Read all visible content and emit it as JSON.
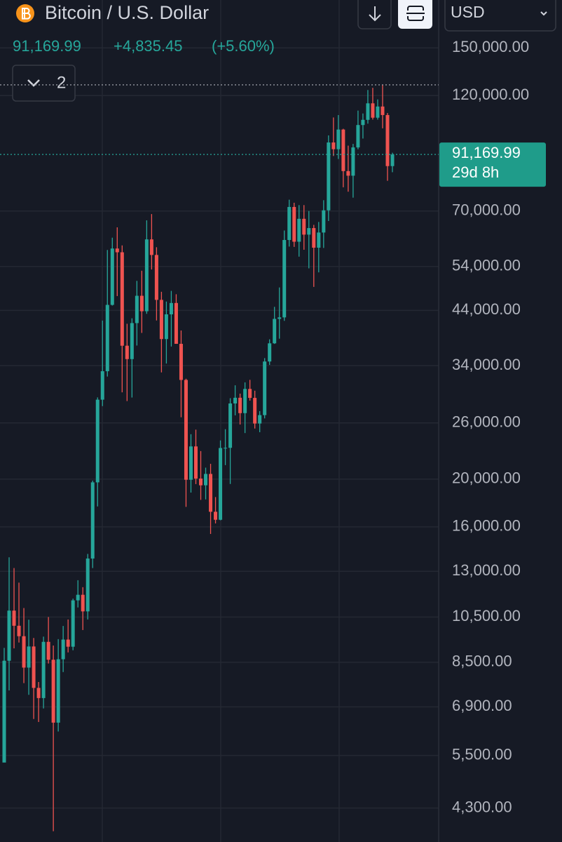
{
  "chart_data": {
    "type": "candlestick",
    "title": "Bitcoin / U.S. Dollar",
    "change": "+4,835.45",
    "change_pct": "(+5.60%)",
    "interval_count": "2",
    "currency": "USD",
    "countdown": "29d 8h",
    "last_price": {
      "value": 91169.99,
      "label": "91,169.99"
    },
    "high_line": 126200,
    "log_scale": true,
    "grid": true,
    "up_color": "#26a69a",
    "down_color": "#ef5350",
    "ylim": [
      3670,
      187600
    ],
    "yticks": [
      {
        "value": 150000,
        "label": "150,000.00"
      },
      {
        "value": 120000,
        "label": "120,000.00"
      },
      {
        "value": 70000,
        "label": "70,000.00"
      },
      {
        "value": 54000,
        "label": "54,000.00"
      },
      {
        "value": 44000,
        "label": "44,000.00"
      },
      {
        "value": 34000,
        "label": "34,000.00"
      },
      {
        "value": 26000,
        "label": "26,000.00"
      },
      {
        "value": 20000,
        "label": "20,000.00"
      },
      {
        "value": 16000,
        "label": "16,000.00"
      },
      {
        "value": 13000,
        "label": "13,000.00"
      },
      {
        "value": 10500,
        "label": "10,500.00"
      },
      {
        "value": 8500,
        "label": "8,500.00"
      },
      {
        "value": 6900,
        "label": "6,900.00"
      },
      {
        "value": 5500,
        "label": "5,500.00"
      },
      {
        "value": 4300,
        "label": "4,300.00"
      }
    ],
    "open": [
      5320,
      8560,
      10820,
      10080,
      9600,
      8290,
      9150,
      7540,
      7190,
      9350,
      8600,
      6410,
      8620,
      9450,
      9140,
      11350,
      11650,
      10780,
      13800,
      19700,
      28990,
      33110,
      45140,
      58740,
      57720,
      37300,
      35040,
      41460,
      47100,
      43820,
      61300,
      57000,
      46210,
      38480,
      43190,
      45540,
      37630,
      31790,
      19940,
      23300,
      20050,
      19430,
      20490,
      17170,
      16540,
      23130,
      23150,
      28480,
      29250,
      27220,
      30480,
      29230,
      25930,
      26970,
      34650,
      37720,
      42280,
      42580,
      61130,
      71330,
      60640,
      67490,
      62680,
      64630,
      58970,
      63300,
      70220,
      96410,
      93430,
      102410,
      84350,
      82550,
      94210,
      104600,
      107170,
      115760,
      108250,
      114050,
      109600,
      86335
    ],
    "high": [
      9090,
      13880,
      13200,
      12330,
      10950,
      10370,
      9520,
      7750,
      9580,
      10500,
      9190,
      9470,
      10070,
      10380,
      11440,
      12470,
      12070,
      14100,
      19860,
      29300,
      41950,
      58350,
      61790,
      64850,
      59590,
      41330,
      42400,
      50500,
      52950,
      67000,
      69000,
      59100,
      47990,
      45850,
      48190,
      47440,
      40050,
      31970,
      24670,
      25200,
      22800,
      21100,
      21480,
      18390,
      23960,
      25250,
      29190,
      31000,
      29820,
      31430,
      31800,
      30230,
      27480,
      35200,
      38430,
      44730,
      48970,
      63910,
      73790,
      72750,
      71950,
      71960,
      70000,
      65610,
      66500,
      73620,
      99650,
      108350,
      109590,
      102780,
      95000,
      95770,
      111900,
      110400,
      123200,
      124460,
      117900,
      126200,
      110650,
      91900
    ],
    "low": [
      5330,
      7450,
      9070,
      9320,
      7710,
      7300,
      6520,
      6430,
      6850,
      8450,
      3860,
      6150,
      8120,
      8900,
      8990,
      10980,
      9880,
      10380,
      13200,
      17600,
      28130,
      32300,
      45000,
      47040,
      30000,
      28800,
      29280,
      37330,
      39600,
      43290,
      53260,
      41970,
      32930,
      34320,
      37160,
      37700,
      26700,
      17570,
      18780,
      19540,
      18150,
      18190,
      15480,
      16260,
      16500,
      21350,
      19550,
      26940,
      25810,
      24800,
      28860,
      25330,
      24900,
      26560,
      34100,
      37620,
      38550,
      41890,
      59280,
      59190,
      56550,
      58400,
      53540,
      49100,
      52550,
      58900,
      66800,
      90500,
      89250,
      78200,
      76600,
      74500,
      93400,
      98200,
      105270,
      107300,
      107270,
      103000,
      80600,
      83900
    ],
    "close": [
      8560,
      10820,
      10080,
      9600,
      8290,
      9150,
      7540,
      7190,
      9350,
      8600,
      6410,
      8620,
      9450,
      9140,
      11350,
      11650,
      10780,
      13800,
      19700,
      28990,
      33110,
      45140,
      58740,
      57720,
      37300,
      35040,
      41460,
      47100,
      43820,
      61300,
      57000,
      46210,
      38480,
      43190,
      45540,
      37630,
      31790,
      19940,
      23300,
      20050,
      19430,
      20490,
      17170,
      16540,
      23130,
      23150,
      28480,
      29250,
      27220,
      30480,
      29230,
      25930,
      26970,
      34650,
      37720,
      42280,
      42580,
      61130,
      71330,
      60640,
      67490,
      62680,
      64630,
      58970,
      63300,
      70220,
      96410,
      93430,
      102410,
      84350,
      82550,
      94210,
      104600,
      107170,
      115760,
      108250,
      114050,
      109600,
      86335,
      91169.99
    ]
  }
}
